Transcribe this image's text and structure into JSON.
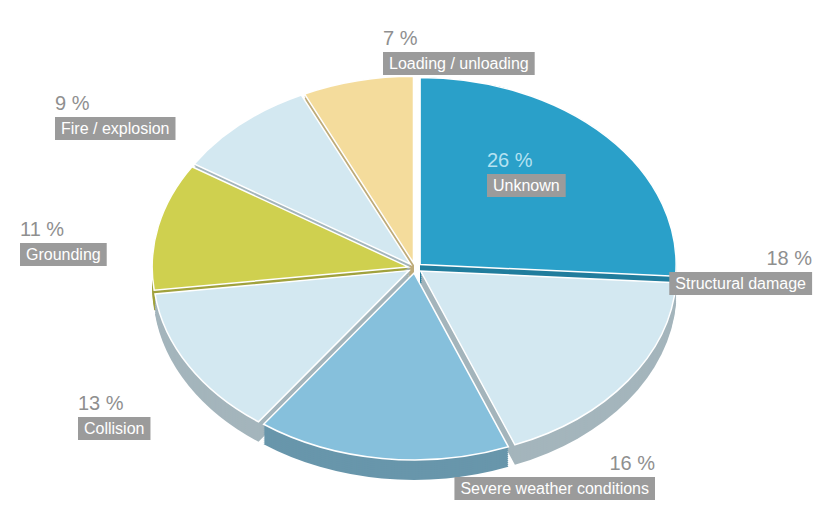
{
  "chart_data": {
    "type": "pie",
    "categories": [
      "Unknown",
      "Structural damage",
      "Severe weather conditions",
      "Collision",
      "Grounding",
      "Fire / explosion",
      "Loading / unloading"
    ],
    "values": [
      26,
      18,
      16,
      13,
      11,
      9,
      7
    ],
    "value_labels": [
      "26 %",
      "18 %",
      "16 %",
      "13 %",
      "11 %",
      "9 %",
      "7 %"
    ],
    "colors": [
      "#2aa0c9",
      "#d3e8f1",
      "#86c0dc",
      "#d3e8f1",
      "#cfd04f",
      "#d3e8f1",
      "#f4dc9c"
    ],
    "data_labels": true
  }
}
